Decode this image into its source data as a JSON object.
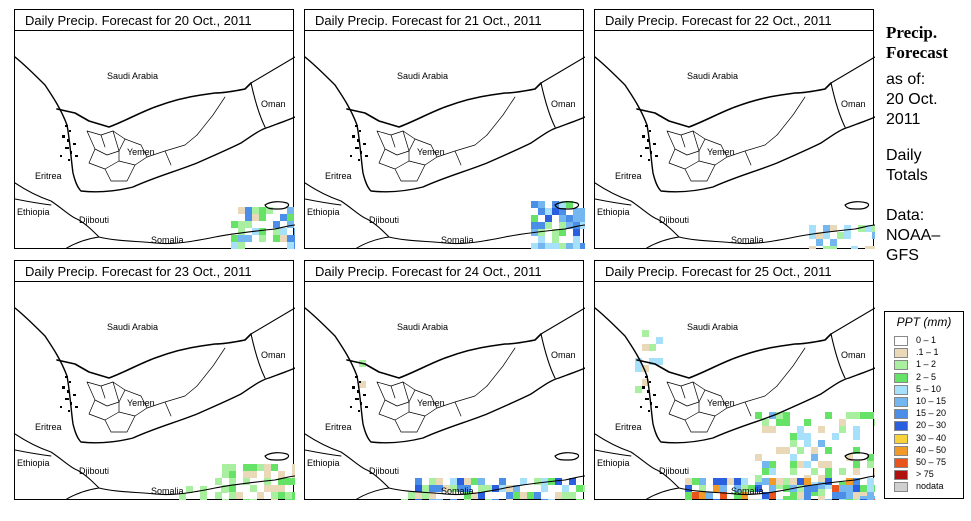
{
  "panels": [
    {
      "title": "Daily Precip. Forecast for  20 Oct., 2011",
      "variant": 0
    },
    {
      "title": "Daily Precip. Forecast for  21 Oct., 2011",
      "variant": 1
    },
    {
      "title": "Daily Precip. Forecast for  22 Oct., 2011",
      "variant": 2
    },
    {
      "title": "Daily Precip. Forecast for  23 Oct., 2011",
      "variant": 3
    },
    {
      "title": "Daily Precip. Forecast for  24 Oct., 2011",
      "variant": 4
    },
    {
      "title": "Daily Precip. Forecast for  25 Oct., 2011",
      "variant": 5
    }
  ],
  "map_labels": {
    "saudi": "Saudi Arabia",
    "oman": "Oman",
    "yemen": "Yemen",
    "eritrea": "Eritrea",
    "ethiopia": "Ethiopia",
    "djibouti": "Djibouti",
    "somalia": "Somalia"
  },
  "side": {
    "title_line1": "Precip.",
    "title_line2": "Forecast",
    "asof": "as of:",
    "date_line1": "20 Oct.",
    "date_line2": "2011",
    "daily1": "Daily",
    "daily2": "Totals",
    "data1": "Data:",
    "data2": "NOAA–",
    "data3": "GFS"
  },
  "legend": {
    "title": "PPT (mm)",
    "items": [
      {
        "label": "0 – 1",
        "color": "#ffffff"
      },
      {
        "label": ".1 – 1",
        "color": "#ead9b9"
      },
      {
        "label": "1 – 2",
        "color": "#a8f0a0"
      },
      {
        "label": "2 – 5",
        "color": "#66e266"
      },
      {
        "label": "5 – 10",
        "color": "#a6e0fa"
      },
      {
        "label": "10 – 15",
        "color": "#74b6f0"
      },
      {
        "label": "15 – 20",
        "color": "#4a8ee8"
      },
      {
        "label": "20 – 30",
        "color": "#2a5fe0"
      },
      {
        "label": "30 – 40",
        "color": "#f7d23a"
      },
      {
        "label": "40 – 50",
        "color": "#f19a2a"
      },
      {
        "label": "50 – 75",
        "color": "#e8541c"
      },
      {
        "label": "> 75",
        "color": "#b01010"
      },
      {
        "label": "nodata",
        "color": "#cfcfcf"
      }
    ]
  }
}
